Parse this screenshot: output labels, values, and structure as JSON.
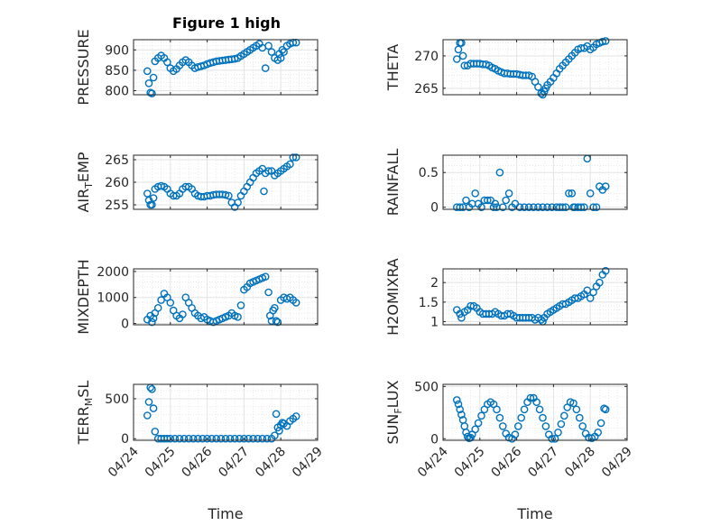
{
  "figure": {
    "title": "Figure 1 high",
    "marker_color": "#0072BD"
  },
  "chart_data": [
    {
      "type": "scatter",
      "ylabel": "PRESSURE",
      "ylim": [
        790,
        925
      ],
      "yticks": [
        800,
        850,
        900
      ],
      "xlim": [
        "04/24 00:00",
        "04/29 00:00"
      ],
      "grid": true,
      "x": [
        "04/24 09:00",
        "04/24 10:00",
        "04/24 11:00",
        "04/24 12:00",
        "04/24 13:00",
        "04/24 14:00",
        "04/24 16:00",
        "04/24 18:00",
        "04/24 20:00",
        "04/24 22:00",
        "04/25 00:00",
        "04/25 02:00",
        "04/25 04:00",
        "04/25 06:00",
        "04/25 08:00",
        "04/25 10:00",
        "04/25 12:00",
        "04/25 14:00",
        "04/25 16:00",
        "04/25 18:00",
        "04/25 20:00",
        "04/25 22:00",
        "04/26 00:00",
        "04/26 02:00",
        "04/26 04:00",
        "04/26 06:00",
        "04/26 08:00",
        "04/26 10:00",
        "04/26 12:00",
        "04/26 14:00",
        "04/26 16:00",
        "04/26 18:00",
        "04/26 20:00",
        "04/26 22:00",
        "04/27 00:00",
        "04/27 02:00",
        "04/27 04:00",
        "04/27 06:00",
        "04/27 08:00",
        "04/27 10:00",
        "04/27 12:00",
        "04/27 14:00",
        "04/27 16:00",
        "04/27 18:00",
        "04/27 20:00",
        "04/27 22:00",
        "04/27 23:00",
        "04/28 00:00",
        "04/28 01:00",
        "04/28 02:00",
        "04/28 04:00",
        "04/28 06:00",
        "04/28 08:00",
        "04/28 10:00"
      ],
      "y": [
        848,
        818,
        795,
        793,
        832,
        872,
        880,
        886,
        880,
        870,
        855,
        848,
        853,
        862,
        870,
        875,
        870,
        862,
        855,
        858,
        860,
        862,
        865,
        868,
        870,
        872,
        873,
        874,
        875,
        876,
        877,
        878,
        880,
        885,
        890,
        895,
        900,
        905,
        910,
        915,
        905,
        855,
        910,
        895,
        880,
        875,
        890,
        880,
        900,
        895,
        910,
        915,
        918,
        918
      ]
    },
    {
      "type": "scatter",
      "ylabel": "THETA",
      "ylim": [
        264,
        272.5
      ],
      "yticks": [
        265,
        270
      ],
      "xlim": [
        "04/24 00:00",
        "04/29 00:00"
      ],
      "grid": true,
      "x": [
        "04/24 09:00",
        "04/24 10:00",
        "04/24 11:00",
        "04/24 12:00",
        "04/24 13:00",
        "04/24 14:00",
        "04/24 16:00",
        "04/24 18:00",
        "04/24 20:00",
        "04/24 22:00",
        "04/25 00:00",
        "04/25 02:00",
        "04/25 04:00",
        "04/25 06:00",
        "04/25 08:00",
        "04/25 10:00",
        "04/25 12:00",
        "04/25 14:00",
        "04/25 16:00",
        "04/25 18:00",
        "04/25 20:00",
        "04/25 22:00",
        "04/26 00:00",
        "04/26 02:00",
        "04/26 04:00",
        "04/26 06:00",
        "04/26 08:00",
        "04/26 10:00",
        "04/26 12:00",
        "04/26 14:00",
        "04/26 16:00",
        "04/26 17:00",
        "04/26 18:00",
        "04/26 19:00",
        "04/26 20:00",
        "04/26 22:00",
        "04/27 00:00",
        "04/27 02:00",
        "04/27 04:00",
        "04/27 06:00",
        "04/27 08:00",
        "04/27 10:00",
        "04/27 12:00",
        "04/27 14:00",
        "04/27 16:00",
        "04/27 18:00",
        "04/27 20:00",
        "04/27 22:00",
        "04/28 00:00",
        "04/28 02:00",
        "04/28 04:00",
        "04/28 06:00",
        "04/28 08:00",
        "04/28 10:00"
      ],
      "y": [
        269.5,
        271,
        272,
        272,
        270,
        268.5,
        268.5,
        268.8,
        268.8,
        268.8,
        268.8,
        268.7,
        268.7,
        268.5,
        268.2,
        268,
        267.7,
        267.5,
        267.3,
        267.3,
        267.2,
        267.2,
        267.2,
        267.1,
        267,
        267,
        267,
        266.8,
        266,
        265.2,
        264.2,
        264,
        264.5,
        265,
        265.5,
        266,
        266.6,
        267.3,
        268,
        268.5,
        269,
        269.5,
        270,
        270.5,
        271,
        271.2,
        271.2,
        271.5,
        271,
        271.3,
        271.8,
        272,
        272.2,
        272.3
      ]
    },
    {
      "type": "scatter",
      "ylabel": "AIR_TEMP",
      "ylim": [
        254,
        266
      ],
      "yticks": [
        255,
        260,
        265
      ],
      "xlim": [
        "04/24 00:00",
        "04/29 00:00"
      ],
      "grid": true,
      "x": [
        "04/24 09:00",
        "04/24 10:00",
        "04/24 11:00",
        "04/24 12:00",
        "04/24 13:00",
        "04/24 14:00",
        "04/24 16:00",
        "04/24 18:00",
        "04/24 20:00",
        "04/24 22:00",
        "04/25 00:00",
        "04/25 02:00",
        "04/25 04:00",
        "04/25 06:00",
        "04/25 08:00",
        "04/25 10:00",
        "04/25 12:00",
        "04/25 14:00",
        "04/25 16:00",
        "04/25 18:00",
        "04/25 20:00",
        "04/25 22:00",
        "04/26 00:00",
        "04/26 02:00",
        "04/26 04:00",
        "04/26 06:00",
        "04/26 08:00",
        "04/26 10:00",
        "04/26 12:00",
        "04/26 14:00",
        "04/26 16:00",
        "04/26 18:00",
        "04/26 20:00",
        "04/26 22:00",
        "04/27 00:00",
        "04/27 02:00",
        "04/27 04:00",
        "04/27 06:00",
        "04/27 08:00",
        "04/27 10:00",
        "04/27 12:00",
        "04/27 13:00",
        "04/27 14:00",
        "04/27 16:00",
        "04/27 18:00",
        "04/27 20:00",
        "04/27 22:00",
        "04/28 00:00",
        "04/28 02:00",
        "04/28 04:00",
        "04/28 06:00",
        "04/28 08:00",
        "04/28 10:00"
      ],
      "y": [
        257.5,
        256,
        255,
        255,
        256.5,
        258.5,
        259,
        259.2,
        259,
        258.5,
        257.5,
        257,
        257,
        257.5,
        258.5,
        259,
        259,
        258.5,
        257.5,
        257,
        256.8,
        256.8,
        257,
        257,
        257.2,
        257.3,
        257.3,
        257.3,
        257.2,
        257,
        255.5,
        254.5,
        255.5,
        257,
        258,
        259,
        260,
        261,
        262,
        262.5,
        263,
        258,
        262,
        262.5,
        262.5,
        261.5,
        262,
        262.5,
        263,
        263.5,
        264,
        265.5,
        265.5
      ]
    },
    {
      "type": "scatter",
      "ylabel": "RAINFALL",
      "ylim": [
        -0.03,
        0.75
      ],
      "yticks": [
        0,
        0.5
      ],
      "xlim": [
        "04/24 00:00",
        "04/29 00:00"
      ],
      "grid": true,
      "x": [
        "04/24 09:00",
        "04/24 11:00",
        "04/24 13:00",
        "04/24 15:00",
        "04/24 17:00",
        "04/24 19:00",
        "04/24 21:00",
        "04/24 23:00",
        "04/25 01:00",
        "04/25 03:00",
        "04/25 05:00",
        "04/25 07:00",
        "04/25 09:00",
        "04/25 10:00",
        "04/25 11:00",
        "04/25 13:00",
        "04/25 15:00",
        "04/25 17:00",
        "04/25 19:00",
        "04/25 21:00",
        "04/25 23:00",
        "04/26 02:00",
        "04/26 05:00",
        "04/26 08:00",
        "04/26 11:00",
        "04/26 14:00",
        "04/26 17:00",
        "04/26 20:00",
        "04/26 23:00",
        "04/27 02:00",
        "04/27 04:00",
        "04/27 06:00",
        "04/27 08:00",
        "04/27 10:00",
        "04/27 12:00",
        "04/27 13:00",
        "04/27 14:00",
        "04/27 16:00",
        "04/27 18:00",
        "04/27 20:00",
        "04/27 22:00",
        "04/28 00:00",
        "04/28 02:00",
        "04/28 04:00",
        "04/28 06:00",
        "04/28 08:00",
        "04/28 10:00"
      ],
      "y": [
        0,
        0,
        0,
        0.1,
        0,
        0.05,
        0.2,
        0.05,
        0,
        0.1,
        0.1,
        0.1,
        0,
        0.05,
        0,
        0.5,
        0,
        0.1,
        0.2,
        0,
        0.05,
        0,
        0,
        0,
        0,
        0,
        0,
        0,
        0,
        0,
        0,
        0,
        0,
        0.2,
        0.2,
        0,
        0,
        0,
        0,
        0,
        0.7,
        0.2,
        0,
        0,
        0.3,
        0.25,
        0.3
      ]
    },
    {
      "type": "scatter",
      "ylabel": "MIXDEPTH",
      "ylim": [
        -50,
        2100
      ],
      "yticks": [
        0,
        1000,
        2000
      ],
      "xlim": [
        "04/24 00:00",
        "04/29 00:00"
      ],
      "grid": true,
      "x": [
        "04/24 09:00",
        "04/24 11:00",
        "04/24 12:00",
        "04/24 13:00",
        "04/24 14:00",
        "04/24 16:00",
        "04/24 18:00",
        "04/24 20:00",
        "04/24 22:00",
        "04/25 00:00",
        "04/25 02:00",
        "04/25 04:00",
        "04/25 06:00",
        "04/25 08:00",
        "04/25 10:00",
        "04/25 12:00",
        "04/25 14:00",
        "04/25 16:00",
        "04/25 18:00",
        "04/25 20:00",
        "04/25 22:00",
        "04/26 00:00",
        "04/26 02:00",
        "04/26 04:00",
        "04/26 06:00",
        "04/26 08:00",
        "04/26 10:00",
        "04/26 12:00",
        "04/26 14:00",
        "04/26 16:00",
        "04/26 18:00",
        "04/26 20:00",
        "04/26 22:00",
        "04/27 00:00",
        "04/27 02:00",
        "04/27 04:00",
        "04/27 06:00",
        "04/27 08:00",
        "04/27 10:00",
        "04/27 12:00",
        "04/27 14:00",
        "04/27 16:00",
        "04/27 17:00",
        "04/27 18:00",
        "04/27 19:00",
        "04/27 20:00",
        "04/27 21:00",
        "04/27 22:00",
        "04/28 00:00",
        "04/28 02:00",
        "04/28 04:00",
        "04/28 06:00",
        "04/28 08:00",
        "04/28 10:00"
      ],
      "y": [
        150,
        300,
        50,
        200,
        400,
        600,
        900,
        1150,
        1000,
        800,
        500,
        300,
        200,
        350,
        1000,
        800,
        600,
        400,
        300,
        200,
        250,
        150,
        100,
        50,
        100,
        150,
        200,
        250,
        300,
        400,
        300,
        250,
        700,
        1300,
        1400,
        1550,
        1600,
        1650,
        1700,
        1750,
        1800,
        1200,
        300,
        100,
        500,
        600,
        100,
        50,
        900,
        1000,
        950,
        1000,
        900,
        800
      ]
    },
    {
      "type": "scatter",
      "ylabel": "H2OMIXRA",
      "ylim": [
        0.92,
        2.35
      ],
      "yticks": [
        1,
        1.5,
        2
      ],
      "xlim": [
        "04/24 00:00",
        "04/29 00:00"
      ],
      "grid": true,
      "x": [
        "04/24 09:00",
        "04/24 11:00",
        "04/24 12:00",
        "04/24 14:00",
        "04/24 16:00",
        "04/24 18:00",
        "04/24 20:00",
        "04/24 22:00",
        "04/25 00:00",
        "04/25 02:00",
        "04/25 04:00",
        "04/25 06:00",
        "04/25 08:00",
        "04/25 10:00",
        "04/25 12:00",
        "04/25 14:00",
        "04/25 16:00",
        "04/25 18:00",
        "04/25 20:00",
        "04/25 22:00",
        "04/26 00:00",
        "04/26 02:00",
        "04/26 04:00",
        "04/26 06:00",
        "04/26 08:00",
        "04/26 10:00",
        "04/26 12:00",
        "04/26 14:00",
        "04/26 16:00",
        "04/26 17:00",
        "04/26 18:00",
        "04/26 20:00",
        "04/26 22:00",
        "04/27 00:00",
        "04/27 02:00",
        "04/27 04:00",
        "04/27 06:00",
        "04/27 08:00",
        "04/27 10:00",
        "04/27 12:00",
        "04/27 14:00",
        "04/27 16:00",
        "04/27 18:00",
        "04/27 20:00",
        "04/27 22:00",
        "04/28 00:00",
        "04/28 02:00",
        "04/28 04:00",
        "04/28 06:00",
        "04/28 08:00",
        "04/28 10:00"
      ],
      "y": [
        1.3,
        1.2,
        1.1,
        1.25,
        1.3,
        1.4,
        1.4,
        1.35,
        1.25,
        1.2,
        1.2,
        1.2,
        1.2,
        1.25,
        1.2,
        1.15,
        1.15,
        1.2,
        1.2,
        1.15,
        1.1,
        1.1,
        1.1,
        1.1,
        1.1,
        1.1,
        1.05,
        1.1,
        1.05,
        1.0,
        1.1,
        1.2,
        1.25,
        1.3,
        1.35,
        1.4,
        1.45,
        1.45,
        1.5,
        1.55,
        1.6,
        1.6,
        1.65,
        1.7,
        1.8,
        1.6,
        1.75,
        1.9,
        2.0,
        2.2,
        2.3
      ]
    },
    {
      "type": "scatter",
      "ylabel": "TERR_MSL",
      "ylim": [
        -20,
        680
      ],
      "yticks": [
        0,
        500
      ],
      "xlim": [
        "04/24 00:00",
        "04/29 00:00"
      ],
      "grid": true,
      "x": [
        "04/24 09:00",
        "04/24 10:00",
        "04/24 11:00",
        "04/24 12:00",
        "04/24 13:00",
        "04/24 14:00",
        "04/24 16:00",
        "04/24 18:00",
        "04/24 20:00",
        "04/24 22:00",
        "04/25 00:00",
        "04/25 03:00",
        "04/25 06:00",
        "04/25 09:00",
        "04/25 12:00",
        "04/25 15:00",
        "04/25 18:00",
        "04/25 21:00",
        "04/26 00:00",
        "04/26 03:00",
        "04/26 06:00",
        "04/26 09:00",
        "04/26 12:00",
        "04/26 15:00",
        "04/26 18:00",
        "04/26 21:00",
        "04/27 00:00",
        "04/27 03:00",
        "04/27 06:00",
        "04/27 09:00",
        "04/27 12:00",
        "04/27 15:00",
        "04/27 18:00",
        "04/27 20:00",
        "04/27 21:00",
        "04/27 22:00",
        "04/27 23:00",
        "04/28 00:00",
        "04/28 01:00",
        "04/28 02:00",
        "04/28 04:00",
        "04/28 06:00",
        "04/28 08:00",
        "04/28 10:00"
      ],
      "y": [
        290,
        460,
        640,
        620,
        380,
        90,
        0,
        0,
        0,
        0,
        0,
        0,
        0,
        0,
        0,
        0,
        0,
        0,
        0,
        0,
        0,
        0,
        0,
        0,
        0,
        0,
        0,
        0,
        0,
        0,
        0,
        0,
        0,
        40,
        310,
        140,
        100,
        170,
        200,
        190,
        160,
        220,
        250,
        280
      ]
    },
    {
      "type": "scatter",
      "ylabel": "SUN_FLUX",
      "ylim": [
        -15,
        520
      ],
      "yticks": [
        0,
        500
      ],
      "xlim": [
        "04/24 00:00",
        "04/29 00:00"
      ],
      "grid": true,
      "x": [
        "04/24 09:00",
        "04/24 10:00",
        "04/24 11:00",
        "04/24 12:00",
        "04/24 13:00",
        "04/24 14:00",
        "04/24 15:00",
        "04/24 16:00",
        "04/24 17:00",
        "04/24 18:00",
        "04/24 19:00",
        "04/24 21:00",
        "04/24 23:00",
        "04/25 01:00",
        "04/25 03:00",
        "04/25 05:00",
        "04/25 07:00",
        "04/25 09:00",
        "04/25 11:00",
        "04/25 13:00",
        "04/25 15:00",
        "04/25 17:00",
        "04/25 19:00",
        "04/25 21:00",
        "04/25 23:00",
        "04/26 01:00",
        "04/26 03:00",
        "04/26 05:00",
        "04/26 07:00",
        "04/26 09:00",
        "04/26 11:00",
        "04/26 13:00",
        "04/26 15:00",
        "04/26 17:00",
        "04/26 19:00",
        "04/26 21:00",
        "04/26 23:00",
        "04/27 01:00",
        "04/27 03:00",
        "04/27 05:00",
        "04/27 07:00",
        "04/27 09:00",
        "04/27 11:00",
        "04/27 13:00",
        "04/27 15:00",
        "04/27 17:00",
        "04/27 19:00",
        "04/27 21:00",
        "04/27 23:00",
        "04/28 01:00",
        "04/28 03:00",
        "04/28 05:00",
        "04/28 07:00",
        "04/28 09:00",
        "04/28 10:00"
      ],
      "y": [
        370,
        330,
        280,
        230,
        180,
        120,
        60,
        20,
        5,
        10,
        40,
        90,
        150,
        220,
        280,
        330,
        350,
        330,
        280,
        200,
        120,
        50,
        10,
        0,
        40,
        120,
        200,
        280,
        350,
        390,
        390,
        350,
        280,
        200,
        120,
        40,
        0,
        0,
        60,
        140,
        220,
        300,
        350,
        340,
        280,
        200,
        120,
        50,
        10,
        5,
        20,
        60,
        150,
        290,
        280
      ]
    }
  ],
  "xaxis": {
    "ticks": [
      "04/24",
      "04/25",
      "04/26",
      "04/27",
      "04/28",
      "04/29"
    ],
    "label": "Time"
  }
}
